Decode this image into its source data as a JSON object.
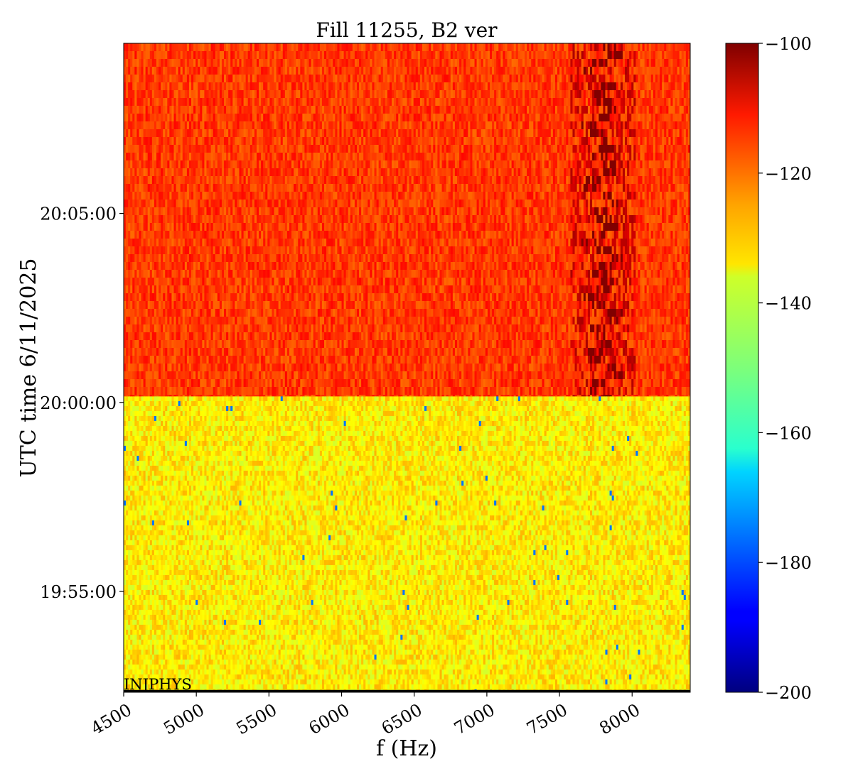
{
  "chart_data": {
    "type": "heatmap",
    "title": "Fill 11255, B2 ver",
    "xlabel": "f (Hz)",
    "ylabel": "UTC time 6/11/2025",
    "xlim": [
      4500,
      8400
    ],
    "ylim": [
      "19:52:20",
      "20:09:30"
    ],
    "x_ticks": [
      4500,
      5000,
      5500,
      6000,
      6500,
      7000,
      7500,
      8000
    ],
    "y_ticks": [
      {
        "time": "19:55:00",
        "seconds": 0
      },
      {
        "time": "20:00:00",
        "seconds": 300
      },
      {
        "time": "20:05:00",
        "seconds": 600
      }
    ],
    "y_range_seconds": [
      -160,
      870
    ],
    "colormap": "jet",
    "colorbar": {
      "vmin": -200,
      "vmax": -100,
      "ticks": [
        -100,
        -120,
        -140,
        -160,
        -180,
        -200
      ]
    },
    "regions": [
      {
        "time_start": "19:52:20",
        "time_end": "20:00:10",
        "level_db": -136,
        "spread_db": 6
      },
      {
        "time_start": "20:00:10",
        "time_end": "20:09:30",
        "level_db": -118,
        "spread_db": 5
      }
    ],
    "feature": {
      "description": "narrow high-power band",
      "freq_center": 7800,
      "freq_width": 450,
      "peak_db": -101,
      "time_start": "20:00:10",
      "time_end": "20:09:30"
    },
    "annotation": {
      "text": "INJPHYS",
      "time": "19:52:22"
    }
  }
}
